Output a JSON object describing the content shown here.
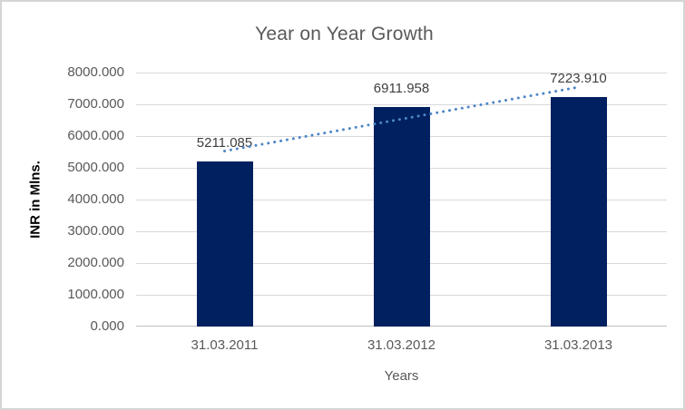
{
  "window": {
    "background": "#ffffff",
    "border_color": "#d5d5d5"
  },
  "chart_data": {
    "type": "bar",
    "title": "Year on Year Growth",
    "xlabel": "Years",
    "ylabel": "INR in Mlns.",
    "categories": [
      "31.03.2011",
      "31.03.2012",
      "31.03.2013"
    ],
    "values": [
      5211.085,
      6911.958,
      7223.91
    ],
    "data_labels": [
      "5211.085",
      "6911.958",
      "7223.910"
    ],
    "ylim": [
      0,
      8000
    ],
    "y_ticks": [
      "0.000",
      "1000.000",
      "2000.000",
      "3000.000",
      "4000.000",
      "5000.000",
      "6000.000",
      "7000.000",
      "8000.000"
    ],
    "grid": true,
    "legend": "none",
    "trendline": {
      "type": "linear",
      "style": "dotted",
      "color": "#4e86c6"
    },
    "colors": {
      "bar": "#002060",
      "gridline": "#d9d9d9",
      "axis_line": "#bfbfbf",
      "title_text": "#595959",
      "tick_text": "#595959",
      "data_label_text": "#3f3f3f"
    }
  }
}
